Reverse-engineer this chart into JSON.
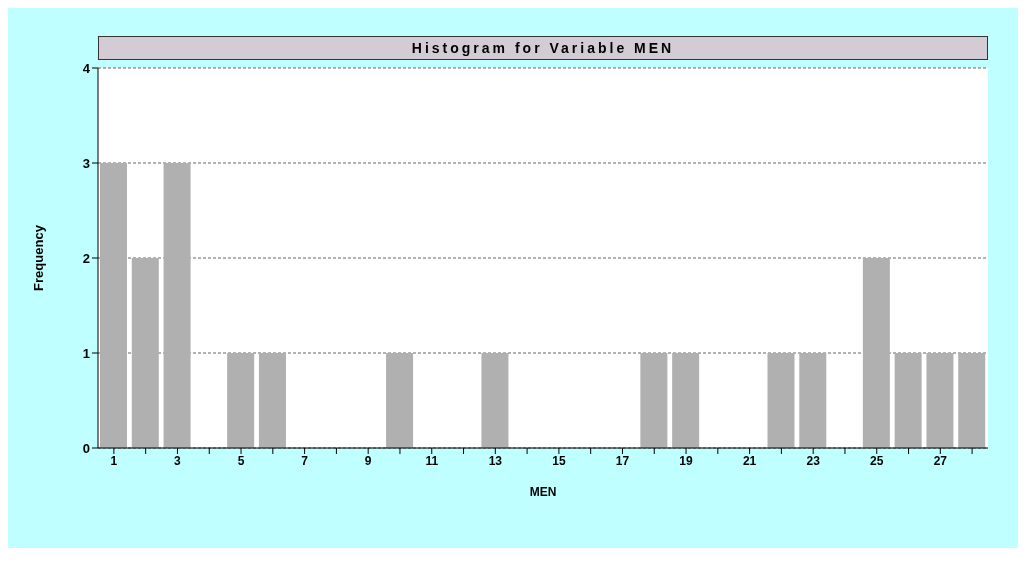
{
  "chart_data": {
    "type": "histogram",
    "title": "Histogram for Variable MEN",
    "xlabel": "MEN",
    "ylabel": "Frequency",
    "bins": [
      0.5,
      1.5,
      2.5,
      3.5,
      4.5,
      5.5,
      6.5,
      7.5,
      8.5,
      9.5,
      10.5,
      11.5,
      12.5,
      13.5,
      14.5,
      15.5,
      16.5,
      17.5,
      18.5,
      19.5,
      20.5,
      21.5,
      22.5,
      23.5,
      24.5,
      25.5,
      26.5,
      27.5,
      28.5
    ],
    "values": [
      3,
      2,
      3,
      0,
      1,
      1,
      0,
      0,
      0,
      1,
      0,
      0,
      1,
      0,
      0,
      0,
      0,
      1,
      1,
      0,
      0,
      1,
      1,
      0,
      2,
      1,
      1,
      1
    ],
    "color": "#b0b0b0",
    "xlim": [
      0.5,
      28.5
    ],
    "xticks": [
      1,
      {
        "value": 2,
        "label": null
      },
      3,
      {
        "value": 4,
        "label": null
      },
      5,
      {
        "value": 6,
        "label": null
      },
      7,
      {
        "value": 8,
        "label": null
      },
      9,
      {
        "value": 10,
        "label": null
      },
      11,
      {
        "value": 12,
        "label": null
      },
      13,
      {
        "value": 14,
        "label": null
      },
      15,
      {
        "value": 16,
        "label": null
      },
      17,
      {
        "value": 18,
        "label": null
      },
      19,
      {
        "value": 20,
        "label": null
      },
      21,
      {
        "value": 22,
        "label": null
      },
      23,
      {
        "value": 24,
        "label": null
      },
      25,
      {
        "value": 26,
        "label": null
      },
      27,
      {
        "value": 28,
        "label": null
      }
    ],
    "ylim": [
      0,
      4
    ],
    "yticks": [
      0,
      1,
      2,
      3,
      4
    ],
    "grid": "y"
  }
}
